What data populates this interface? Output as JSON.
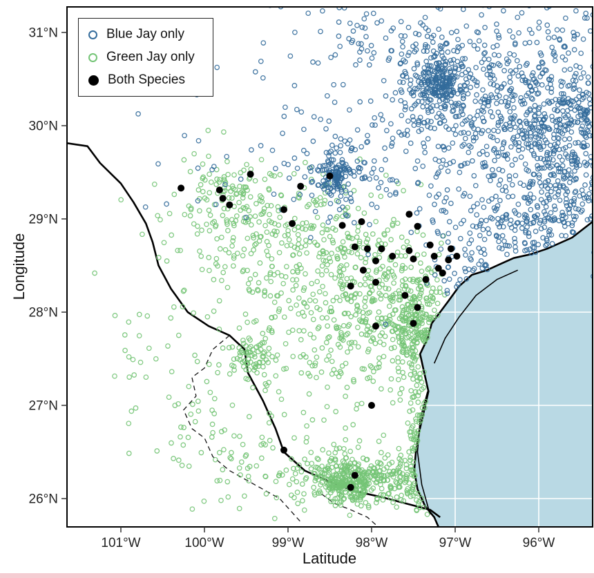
{
  "legend": {
    "items": [
      {
        "label": "Blue Jay only",
        "marker": "open",
        "color": "#336b9b"
      },
      {
        "label": "Green Jay only",
        "marker": "open",
        "color": "#74c476"
      },
      {
        "label": "Both Species",
        "marker": "filled",
        "color": "#000000"
      }
    ]
  },
  "chart_data": {
    "type": "scatter",
    "title": "",
    "xlabel": "Latitude",
    "ylabel": "Longitude",
    "xlim": [
      -101.645,
      -95.355
    ],
    "ylim": [
      25.696,
      31.274
    ],
    "grid": "ocean-only",
    "legend_position": "top-left",
    "x_ticks": [
      {
        "value": -101,
        "label": "101°W"
      },
      {
        "value": -100,
        "label": "100°W"
      },
      {
        "value": -99,
        "label": "99°W"
      },
      {
        "value": -98,
        "label": "98°W"
      },
      {
        "value": -97,
        "label": "97°W"
      },
      {
        "value": -96,
        "label": "96°W"
      }
    ],
    "y_ticks": [
      {
        "value": 31,
        "label": "31°N"
      },
      {
        "value": 30,
        "label": "30°N"
      },
      {
        "value": 29,
        "label": "29°N"
      },
      {
        "value": 28,
        "label": "28°N"
      },
      {
        "value": 27,
        "label": "27°N"
      },
      {
        "value": 26,
        "label": "26°N"
      }
    ],
    "series": [
      {
        "name": "Blue Jay only",
        "style": "open",
        "color": "#336b9b",
        "marker_radius": 3.2,
        "stroke_width": 1.3,
        "opacity": 0.9,
        "clusters": [
          {
            "lon": -95.5,
            "lat": 29.9,
            "sx": 0.45,
            "sy": 0.4,
            "n": 400
          },
          {
            "lon": -95.6,
            "lat": 28.95,
            "sx": 0.4,
            "sy": 0.45,
            "n": 220
          },
          {
            "lon": -96.3,
            "lat": 30.2,
            "sx": 0.5,
            "sy": 0.45,
            "n": 220
          },
          {
            "lon": -97.2,
            "lat": 30.45,
            "sx": 0.3,
            "sy": 0.3,
            "n": 220
          },
          {
            "lon": -97.2,
            "lat": 30.45,
            "sx": 0.1,
            "sy": 0.1,
            "n": 120
          },
          {
            "lon": -98.45,
            "lat": 29.45,
            "sx": 0.09,
            "sy": 0.09,
            "n": 100
          },
          {
            "lon": -98.3,
            "lat": 29.55,
            "sx": 0.3,
            "sy": 0.25,
            "n": 90
          },
          {
            "lon": -96.7,
            "lat": 29.6,
            "sx": 0.75,
            "sy": 0.65,
            "n": 260
          },
          {
            "lon": -97.7,
            "lat": 31.0,
            "sx": 0.85,
            "sy": 0.3,
            "n": 100
          },
          {
            "lon": -96.1,
            "lat": 28.55,
            "sx": 0.3,
            "sy": 0.25,
            "n": 90
          },
          {
            "lon": -96.7,
            "lat": 28.35,
            "sx": 0.25,
            "sy": 0.15,
            "n": 50
          },
          {
            "lon": -99.1,
            "lat": 29.8,
            "sx": 0.7,
            "sy": 0.5,
            "n": 50
          },
          {
            "lon": -95.7,
            "lat": 30.9,
            "sx": 0.45,
            "sy": 0.35,
            "n": 90
          },
          {
            "lon": -96.3,
            "lat": 29.0,
            "sx": 0.35,
            "sy": 0.3,
            "n": 80
          }
        ]
      },
      {
        "name": "Green Jay only",
        "style": "open",
        "color": "#74c476",
        "marker_radius": 3.2,
        "stroke_width": 1.3,
        "opacity": 0.9,
        "clusters": [
          {
            "lon": -98.05,
            "lat": 26.22,
            "sx": 0.5,
            "sy": 0.16,
            "n": 350
          },
          {
            "lon": -98.3,
            "lat": 26.18,
            "sx": 0.17,
            "sy": 0.09,
            "n": 160
          },
          {
            "lon": -97.45,
            "lat": 26.7,
            "sx": 0.1,
            "sy": 0.35,
            "n": 80
          },
          {
            "lon": -97.45,
            "lat": 27.8,
            "sx": 0.14,
            "sy": 0.28,
            "n": 200
          },
          {
            "lon": -97.75,
            "lat": 28.05,
            "sx": 0.35,
            "sy": 0.4,
            "n": 200
          },
          {
            "lon": -98.45,
            "lat": 27.8,
            "sx": 0.55,
            "sy": 0.6,
            "n": 240
          },
          {
            "lon": -99.45,
            "lat": 27.55,
            "sx": 0.13,
            "sy": 0.1,
            "n": 70
          },
          {
            "lon": -99.35,
            "lat": 28.55,
            "sx": 0.5,
            "sy": 0.4,
            "n": 120
          },
          {
            "lon": -99.9,
            "lat": 29.1,
            "sx": 0.35,
            "sy": 0.3,
            "n": 70
          },
          {
            "lon": -98.9,
            "lat": 29.1,
            "sx": 0.5,
            "sy": 0.22,
            "n": 90
          },
          {
            "lon": -100.4,
            "lat": 27.2,
            "sx": 0.45,
            "sy": 0.6,
            "n": 50
          },
          {
            "lon": -99.7,
            "lat": 26.5,
            "sx": 0.4,
            "sy": 0.3,
            "n": 50
          },
          {
            "lon": -98.2,
            "lat": 28.5,
            "sx": 0.4,
            "sy": 0.3,
            "n": 110
          },
          {
            "lon": -97.32,
            "lat": 26.4,
            "sx": 0.08,
            "sy": 0.35,
            "n": 60
          },
          {
            "lon": -99.6,
            "lat": 29.3,
            "sx": 0.3,
            "sy": 0.15,
            "n": 40
          }
        ]
      },
      {
        "name": "Both Species",
        "style": "filled",
        "color": "#000000",
        "marker_radius": 5.0,
        "points": [
          [
            -99.45,
            29.48
          ],
          [
            -100.28,
            29.33
          ],
          [
            -99.82,
            29.31
          ],
          [
            -99.78,
            29.22
          ],
          [
            -99.7,
            29.15
          ],
          [
            -98.85,
            29.35
          ],
          [
            -98.5,
            29.46
          ],
          [
            -99.05,
            29.1
          ],
          [
            -98.95,
            28.95
          ],
          [
            -98.35,
            28.93
          ],
          [
            -98.12,
            28.97
          ],
          [
            -97.55,
            29.05
          ],
          [
            -97.45,
            28.92
          ],
          [
            -98.2,
            28.7
          ],
          [
            -98.05,
            28.68
          ],
          [
            -97.95,
            28.55
          ],
          [
            -97.88,
            28.68
          ],
          [
            -97.75,
            28.6
          ],
          [
            -97.55,
            28.66
          ],
          [
            -97.5,
            28.57
          ],
          [
            -97.3,
            28.72
          ],
          [
            -97.25,
            28.6
          ],
          [
            -97.2,
            28.47
          ],
          [
            -97.08,
            28.56
          ],
          [
            -98.1,
            28.45
          ],
          [
            -97.95,
            28.32
          ],
          [
            -97.6,
            28.18
          ],
          [
            -97.45,
            28.05
          ],
          [
            -97.5,
            27.88
          ],
          [
            -98.25,
            28.28
          ],
          [
            -97.95,
            27.85
          ],
          [
            -98.0,
            27.0
          ],
          [
            -99.05,
            26.52
          ],
          [
            -98.2,
            26.25
          ],
          [
            -98.25,
            26.12
          ],
          [
            -97.35,
            28.35
          ],
          [
            -97.15,
            28.42
          ],
          [
            -96.98,
            28.6
          ],
          [
            -97.05,
            28.68
          ]
        ]
      }
    ],
    "map": {
      "ocean_color": "#b9d9e4",
      "land_color": "#ffffff",
      "grid_color": "#ffffff",
      "line_color": "#000000",
      "ocean_grid": {
        "lon": [
          -97,
          -96
        ],
        "lat": [
          26,
          27,
          28
        ]
      },
      "coast": [
        [
          -95.355,
          28.97
        ],
        [
          -95.6,
          28.8
        ],
        [
          -95.9,
          28.68
        ],
        [
          -96.1,
          28.62
        ],
        [
          -96.3,
          28.58
        ],
        [
          -96.45,
          28.52
        ],
        [
          -96.62,
          28.45
        ],
        [
          -96.8,
          28.4
        ],
        [
          -96.95,
          28.28
        ],
        [
          -97.08,
          28.12
        ],
        [
          -97.18,
          28.0
        ],
        [
          -97.28,
          27.88
        ],
        [
          -97.33,
          27.72
        ],
        [
          -97.42,
          27.55
        ],
        [
          -97.37,
          27.35
        ],
        [
          -97.32,
          27.15
        ],
        [
          -97.37,
          26.95
        ],
        [
          -97.43,
          26.72
        ],
        [
          -97.47,
          26.5
        ],
        [
          -97.49,
          26.3
        ],
        [
          -97.45,
          26.1
        ],
        [
          -97.36,
          25.92
        ],
        [
          -97.25,
          25.8
        ],
        [
          -97.2,
          25.696
        ]
      ],
      "island_line": [
        [
          -97.3,
          25.83
        ],
        [
          -97.4,
          26.15
        ],
        [
          -97.45,
          26.5
        ],
        [
          -97.42,
          26.85
        ],
        [
          -97.33,
          27.15
        ]
      ],
      "bay_line": [
        [
          -97.25,
          27.45
        ],
        [
          -97.12,
          27.72
        ],
        [
          -96.95,
          27.95
        ],
        [
          -96.75,
          28.18
        ],
        [
          -96.5,
          28.35
        ],
        [
          -96.25,
          28.45
        ]
      ],
      "rio_grande": [
        [
          -101.7,
          29.82
        ],
        [
          -101.4,
          29.78
        ],
        [
          -101.25,
          29.6
        ],
        [
          -101.0,
          29.38
        ],
        [
          -100.85,
          29.18
        ],
        [
          -100.7,
          28.95
        ],
        [
          -100.62,
          28.75
        ],
        [
          -100.55,
          28.5
        ],
        [
          -100.4,
          28.25
        ],
        [
          -100.2,
          28.0
        ],
        [
          -99.95,
          27.85
        ],
        [
          -99.7,
          27.75
        ],
        [
          -99.52,
          27.6
        ],
        [
          -99.48,
          27.35
        ],
        [
          -99.3,
          27.05
        ],
        [
          -99.15,
          26.75
        ],
        [
          -99.05,
          26.5
        ],
        [
          -98.8,
          26.3
        ],
        [
          -98.5,
          26.18
        ],
        [
          -98.2,
          26.08
        ],
        [
          -97.9,
          26.02
        ],
        [
          -97.6,
          25.95
        ],
        [
          -97.3,
          25.88
        ],
        [
          -97.18,
          25.8
        ]
      ],
      "dashed_boundaries": [
        [
          [
            -99.7,
            27.75
          ],
          [
            -99.9,
            27.6
          ],
          [
            -100.0,
            27.4
          ],
          [
            -100.15,
            27.3
          ],
          [
            -100.1,
            27.1
          ],
          [
            -100.25,
            26.95
          ],
          [
            -100.15,
            26.75
          ],
          [
            -100.0,
            26.65
          ],
          [
            -99.9,
            26.45
          ],
          [
            -99.7,
            26.3
          ],
          [
            -99.5,
            26.2
          ],
          [
            -99.3,
            26.1
          ],
          [
            -99.1,
            26.0
          ],
          [
            -98.95,
            25.85
          ],
          [
            -98.85,
            25.75
          ]
        ],
        [
          [
            -98.6,
            26.05
          ],
          [
            -98.45,
            25.95
          ],
          [
            -98.25,
            25.88
          ],
          [
            -98.05,
            25.8
          ],
          [
            -97.95,
            25.72
          ]
        ]
      ]
    }
  }
}
